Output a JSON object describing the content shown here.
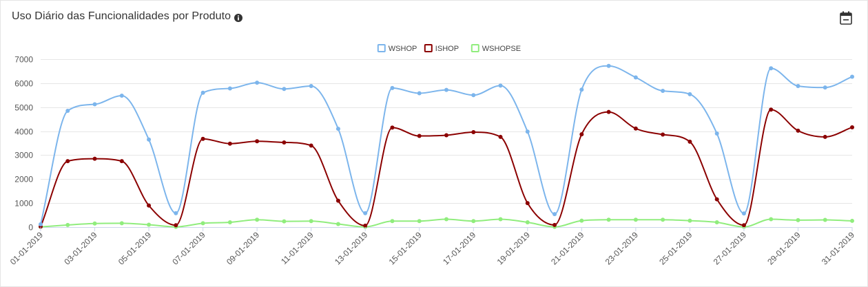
{
  "header": {
    "title": "Uso Diário das Funcionalidades por Produto",
    "info_icon": "info-circle-icon",
    "calendar_icon": "calendar-icon"
  },
  "chart_data": {
    "type": "line",
    "smooth": true,
    "x": [
      "01-01-2019",
      "02-01-2019",
      "03-01-2019",
      "04-01-2019",
      "05-01-2019",
      "06-01-2019",
      "07-01-2019",
      "08-01-2019",
      "09-01-2019",
      "10-01-2019",
      "11-01-2019",
      "12-01-2019",
      "13-01-2019",
      "14-01-2019",
      "15-01-2019",
      "16-01-2019",
      "17-01-2019",
      "18-01-2019",
      "19-01-2019",
      "20-01-2019",
      "21-01-2019",
      "22-01-2019",
      "23-01-2019",
      "24-01-2019",
      "25-01-2019",
      "26-01-2019",
      "27-01-2019",
      "28-01-2019",
      "29-01-2019",
      "30-01-2019",
      "31-01-2019"
    ],
    "x_tick_labels": [
      "01-01-2019",
      "03-01-2019",
      "05-01-2019",
      "07-01-2019",
      "09-01-2019",
      "11-01-2019",
      "13-01-2019",
      "15-01-2019",
      "17-01-2019",
      "19-01-2019",
      "21-01-2019",
      "23-01-2019",
      "25-01-2019",
      "27-01-2019",
      "29-01-2019",
      "31-01-2019"
    ],
    "ylim": [
      0,
      7000
    ],
    "y_ticks": [
      0,
      1000,
      2000,
      3000,
      4000,
      5000,
      6000,
      7000
    ],
    "grid": true,
    "legend_position": "top-center",
    "title": "",
    "xlabel": "",
    "ylabel": "",
    "series": [
      {
        "name": "WSHOP",
        "color": "#7cb5ec",
        "values": [
          120,
          4850,
          5120,
          5480,
          3650,
          580,
          5600,
          5780,
          6020,
          5760,
          5880,
          4100,
          580,
          5800,
          5580,
          5720,
          5500,
          5900,
          3980,
          540,
          5730,
          6720,
          6240,
          5680,
          5540,
          3900,
          570,
          6620,
          5880,
          5820,
          6270
        ]
      },
      {
        "name": "ISHOP",
        "color": "#8b0000",
        "values": [
          20,
          2750,
          2850,
          2750,
          900,
          80,
          3680,
          3480,
          3580,
          3530,
          3400,
          1100,
          60,
          4150,
          3800,
          3830,
          3960,
          3760,
          1000,
          90,
          3870,
          4800,
          4110,
          3860,
          3560,
          1160,
          80,
          4900,
          4020,
          3760,
          4160
        ]
      },
      {
        "name": "WSHOPSE",
        "color": "#90ed7d",
        "values": [
          10,
          90,
          150,
          160,
          100,
          10,
          160,
          200,
          310,
          240,
          250,
          130,
          10,
          250,
          250,
          330,
          250,
          330,
          200,
          10,
          270,
          310,
          310,
          310,
          270,
          200,
          10,
          330,
          290,
          300,
          260
        ]
      }
    ]
  }
}
